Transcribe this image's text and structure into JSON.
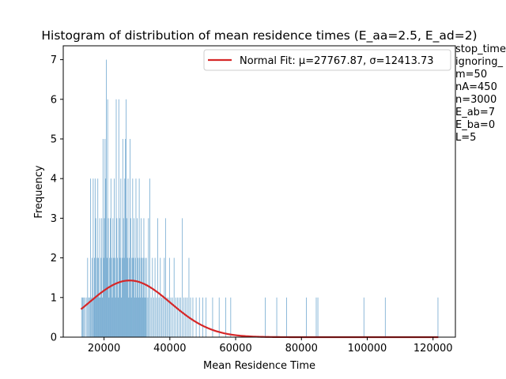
{
  "chart_data": {
    "type": "bar",
    "title": "Histogram of distribution of mean residence times (E_aa=2.5, E_ad=2)",
    "xlabel": "Mean Residence Time",
    "ylabel": "Frequency",
    "xlim": [
      7600,
      126800
    ],
    "ylim": [
      0,
      7.35
    ],
    "xticks": [
      20000,
      40000,
      60000,
      80000,
      100000,
      120000
    ],
    "xtick_labels": [
      "20000",
      "40000",
      "60000",
      "80000",
      "100000",
      "120000"
    ],
    "yticks": [
      0,
      1,
      2,
      3,
      4,
      5,
      6,
      7
    ],
    "ytick_labels": [
      "0",
      "1",
      "2",
      "3",
      "4",
      "5",
      "6",
      "7"
    ],
    "hist_color": "#1f77b4",
    "fit_color": "#d62728",
    "bin_width": 220,
    "bins": [
      [
        13200,
        1
      ],
      [
        13500,
        1
      ],
      [
        13800,
        1
      ],
      [
        14100,
        1
      ],
      [
        14600,
        1
      ],
      [
        15000,
        2
      ],
      [
        15300,
        1
      ],
      [
        15600,
        1
      ],
      [
        15900,
        4
      ],
      [
        16200,
        1
      ],
      [
        16400,
        2
      ],
      [
        16700,
        4
      ],
      [
        16900,
        1
      ],
      [
        17100,
        2
      ],
      [
        17300,
        4
      ],
      [
        17500,
        3
      ],
      [
        17700,
        1
      ],
      [
        17900,
        2
      ],
      [
        18100,
        4
      ],
      [
        18300,
        2
      ],
      [
        18500,
        1
      ],
      [
        18700,
        3
      ],
      [
        18900,
        1
      ],
      [
        19100,
        2
      ],
      [
        19300,
        3
      ],
      [
        19500,
        1
      ],
      [
        19700,
        5
      ],
      [
        19900,
        2
      ],
      [
        20100,
        3
      ],
      [
        20300,
        5
      ],
      [
        20500,
        4
      ],
      [
        20700,
        7
      ],
      [
        20900,
        2
      ],
      [
        21100,
        6
      ],
      [
        21300,
        3
      ],
      [
        21500,
        1
      ],
      [
        21700,
        2
      ],
      [
        21900,
        3
      ],
      [
        22100,
        4
      ],
      [
        22300,
        2
      ],
      [
        22500,
        1
      ],
      [
        22700,
        3
      ],
      [
        22900,
        2
      ],
      [
        23100,
        4
      ],
      [
        23300,
        2
      ],
      [
        23500,
        1
      ],
      [
        23700,
        6
      ],
      [
        23900,
        3
      ],
      [
        24100,
        2
      ],
      [
        24300,
        1
      ],
      [
        24500,
        6
      ],
      [
        24700,
        3
      ],
      [
        24900,
        2
      ],
      [
        25100,
        4
      ],
      [
        25300,
        1
      ],
      [
        25500,
        2
      ],
      [
        25700,
        5
      ],
      [
        25900,
        3
      ],
      [
        26100,
        2
      ],
      [
        26300,
        4
      ],
      [
        26500,
        5
      ],
      [
        26700,
        6
      ],
      [
        26900,
        3
      ],
      [
        27100,
        2
      ],
      [
        27300,
        4
      ],
      [
        27500,
        1
      ],
      [
        27700,
        2
      ],
      [
        27900,
        5
      ],
      [
        28100,
        3
      ],
      [
        28300,
        1
      ],
      [
        28500,
        2
      ],
      [
        28700,
        4
      ],
      [
        28900,
        2
      ],
      [
        29100,
        3
      ],
      [
        29300,
        1
      ],
      [
        29500,
        2
      ],
      [
        29700,
        4
      ],
      [
        29900,
        1
      ],
      [
        30100,
        3
      ],
      [
        30300,
        2
      ],
      [
        30500,
        1
      ],
      [
        30700,
        4
      ],
      [
        30900,
        2
      ],
      [
        31100,
        1
      ],
      [
        31300,
        3
      ],
      [
        31500,
        2
      ],
      [
        31700,
        1
      ],
      [
        31900,
        2
      ],
      [
        32100,
        3
      ],
      [
        32300,
        1
      ],
      [
        32500,
        2
      ],
      [
        32700,
        1
      ],
      [
        32900,
        2
      ],
      [
        33300,
        1
      ],
      [
        33500,
        3
      ],
      [
        33900,
        4
      ],
      [
        34300,
        1
      ],
      [
        34700,
        2
      ],
      [
        35100,
        1
      ],
      [
        35500,
        2
      ],
      [
        35900,
        1
      ],
      [
        36300,
        3
      ],
      [
        36700,
        1
      ],
      [
        37100,
        2
      ],
      [
        37500,
        1
      ],
      [
        37900,
        1
      ],
      [
        38300,
        2
      ],
      [
        38700,
        3
      ],
      [
        39100,
        1
      ],
      [
        39500,
        1
      ],
      [
        39900,
        2
      ],
      [
        40300,
        1
      ],
      [
        40800,
        1
      ],
      [
        41300,
        2
      ],
      [
        41800,
        1
      ],
      [
        42300,
        1
      ],
      [
        42800,
        1
      ],
      [
        43300,
        1
      ],
      [
        43800,
        3
      ],
      [
        44300,
        1
      ],
      [
        44800,
        1
      ],
      [
        45300,
        1
      ],
      [
        45800,
        2
      ],
      [
        46300,
        1
      ],
      [
        47000,
        1
      ],
      [
        48000,
        1
      ],
      [
        49000,
        1
      ],
      [
        50000,
        1
      ],
      [
        51000,
        1
      ],
      [
        53000,
        1
      ],
      [
        55000,
        1
      ],
      [
        57000,
        1
      ],
      [
        58500,
        1
      ],
      [
        69000,
        1
      ],
      [
        72500,
        1
      ],
      [
        75500,
        1
      ],
      [
        81500,
        1
      ],
      [
        84500,
        1
      ],
      [
        85000,
        1
      ],
      [
        99000,
        1
      ],
      [
        105500,
        1
      ],
      [
        121500,
        1
      ]
    ],
    "series": [
      {
        "name": "Normal Fit: μ=27767.87, σ=12413.73",
        "type": "line",
        "mu": 27767.87,
        "sigma": 12413.73,
        "peak": 1.43,
        "x_range": [
          13000,
          121600
        ]
      }
    ],
    "legend_position": "top-right"
  },
  "side_text": [
    "stop_time",
    "ignoring_",
    "m=50",
    "nA=450",
    "n=3000",
    "E_ab=7",
    "E_ba=0",
    "L=5"
  ]
}
